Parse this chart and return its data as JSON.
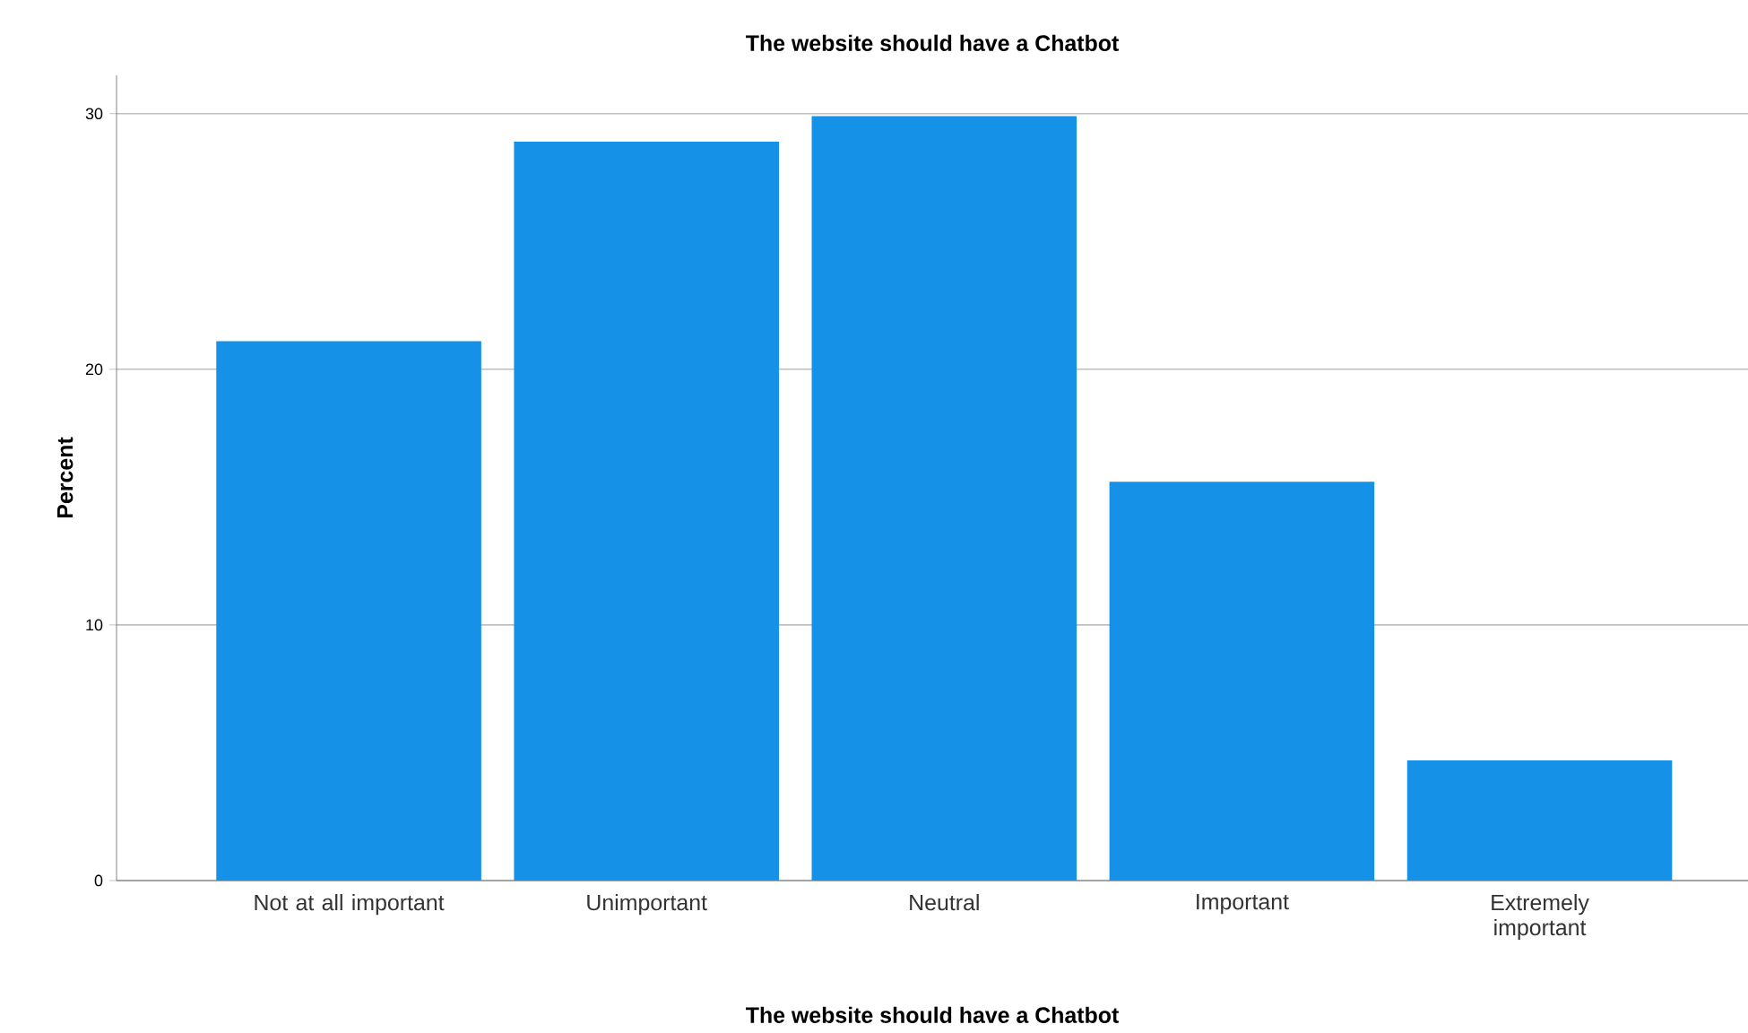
{
  "chart_data": {
    "type": "bar",
    "title": "The website should have a Chatbot",
    "xlabel": "The website should have a Chatbot",
    "ylabel": "Percent",
    "categories": [
      "Not at all important",
      "Unimportant",
      "Neutral",
      "Important",
      "Extremely important"
    ],
    "values": [
      21.1,
      28.9,
      29.9,
      15.6,
      4.7
    ],
    "color": "#1591e8",
    "ylim": [
      0,
      31.5
    ],
    "yticks": [
      0,
      10,
      20,
      30
    ],
    "grid": "y"
  }
}
